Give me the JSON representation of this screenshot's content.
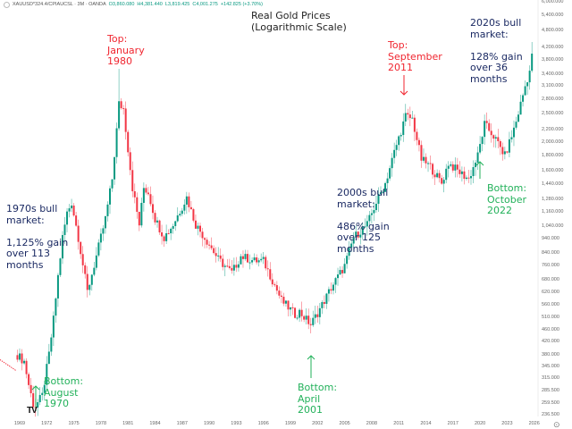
{
  "header": {
    "symbol": "XAUUSD*324.4/CPIAUCSL · 3M · OANDA",
    "open": "O3,860.080",
    "high": "H4,381.440",
    "low": "L3,819.425",
    "close": "C4,001.275",
    "change": "+142.825 (+3.70%)"
  },
  "annotations": {
    "top_1980": "Top:\nJanuary\n1980",
    "top_2011": "Top:\nSeptember\n2011",
    "bull_2020s": "2020s bull\nmarket:\n\n128% gain\nover 36\nmonths",
    "bull_2000s": "2000s bull\nmarket:\n\n486% gain\nover 125\nmonths",
    "bull_1970s": "1970s bull\nmarket:\n\n1,125% gain\nover 113\nmonths",
    "bottom_2001": "Bottom:\nApril\n2001",
    "bottom_1970": "Bottom:\nAugust\n1970",
    "bottom_2022": "Bottom:\nOctober\n2022"
  },
  "logo": "TV",
  "settings_icon": "⊙",
  "colors": {
    "up": "#089981",
    "down": "#f23645",
    "red_note": "#f0252f",
    "green_note": "#22b15a",
    "navy_note": "#1b2a63"
  },
  "chart_data": {
    "type": "candlestick",
    "title": "Real Gold Prices\n(Logarithmic Scale)",
    "interval": "3M",
    "yscale": "log",
    "ylim": [
      236.5,
      6000
    ],
    "y_ticks": [
      "6,000.000",
      "5,400.000",
      "4,800.000",
      "4,200.000",
      "3,800.000",
      "3,400.000",
      "3,100.000",
      "2,800.000",
      "2,500.000",
      "2,200.000",
      "2,000.000",
      "1,800.000",
      "1,600.000",
      "1,440.000",
      "1,280.000",
      "1,160.000",
      "1,040.000",
      "940.000",
      "840.000",
      "760.000",
      "680.000",
      "620.000",
      "560.000",
      "510.000",
      "460.000",
      "420.000",
      "380.000",
      "345.000",
      "315.000",
      "285.500",
      "259.500",
      "236.500"
    ],
    "x_ticks": [
      "1969",
      "1972",
      "1975",
      "1978",
      "1981",
      "1984",
      "1987",
      "1990",
      "1993",
      "1996",
      "1999",
      "2002",
      "2005",
      "2008",
      "2011",
      "2014",
      "2017",
      "2020",
      "2023",
      "2026"
    ],
    "pre_line": [
      [
        1967.0,
        350
      ],
      [
        1968.6,
        335
      ]
    ],
    "anchors": [
      [
        1968.75,
        378
      ],
      [
        1969.5,
        360
      ],
      [
        1970.0,
        300
      ],
      [
        1970.6,
        250
      ],
      [
        1971.5,
        275
      ],
      [
        1972.25,
        380
      ],
      [
        1972.75,
        500
      ],
      [
        1973.25,
        700
      ],
      [
        1973.75,
        950
      ],
      [
        1974.25,
        1150
      ],
      [
        1974.75,
        1250
      ],
      [
        1975.5,
        950
      ],
      [
        1976.5,
        620
      ],
      [
        1977.5,
        820
      ],
      [
        1978.5,
        1100
      ],
      [
        1979.25,
        1500
      ],
      [
        1979.75,
        2200
      ],
      [
        1980.0,
        2700
      ],
      [
        1980.5,
        2600
      ],
      [
        1981.0,
        1900
      ],
      [
        1981.5,
        1400
      ],
      [
        1982.25,
        1050
      ],
      [
        1982.75,
        1400
      ],
      [
        1983.25,
        1350
      ],
      [
        1984.0,
        1100
      ],
      [
        1985.0,
        950
      ],
      [
        1986.0,
        1050
      ],
      [
        1987.5,
        1300
      ],
      [
        1988.5,
        1050
      ],
      [
        1990.0,
        900
      ],
      [
        1991.0,
        800
      ],
      [
        1992.5,
        720
      ],
      [
        1993.5,
        820
      ],
      [
        1995.0,
        790
      ],
      [
        1996.0,
        790
      ],
      [
        1997.0,
        680
      ],
      [
        1998.0,
        580
      ],
      [
        1999.5,
        520
      ],
      [
        2000.0,
        530
      ],
      [
        2001.25,
        480
      ],
      [
        2002.5,
        560
      ],
      [
        2003.5,
        640
      ],
      [
        2005.0,
        760
      ],
      [
        2006.0,
        950
      ],
      [
        2007.5,
        1050
      ],
      [
        2008.5,
        1250
      ],
      [
        2009.5,
        1450
      ],
      [
        2010.5,
        1850
      ],
      [
        2011.75,
        2450
      ],
      [
        2012.5,
        2400
      ],
      [
        2013.5,
        1750
      ],
      [
        2014.5,
        1650
      ],
      [
        2015.75,
        1450
      ],
      [
        2016.5,
        1700
      ],
      [
        2017.5,
        1600
      ],
      [
        2018.75,
        1500
      ],
      [
        2019.75,
        1800
      ],
      [
        2020.5,
        2300
      ],
      [
        2021.5,
        2100
      ],
      [
        2022.75,
        1800
      ],
      [
        2023.5,
        2100
      ],
      [
        2024.0,
        2350
      ],
      [
        2024.5,
        2700
      ],
      [
        2025.0,
        3100
      ],
      [
        2025.5,
        3500
      ],
      [
        2025.75,
        4000
      ]
    ],
    "wick_highs": [
      [
        1980.0,
        3550
      ],
      [
        2011.75,
        2700
      ],
      [
        2025.75,
        4380
      ]
    ]
  }
}
